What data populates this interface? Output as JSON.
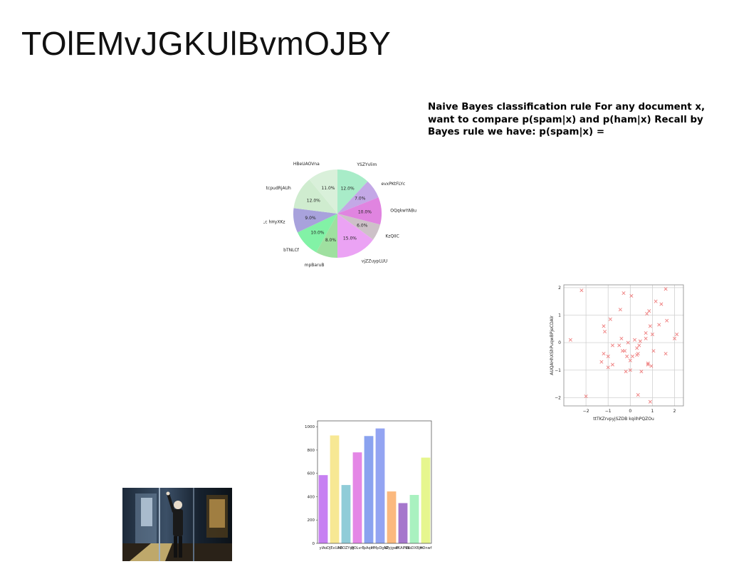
{
  "slide": {
    "title": "TOlEMvJGKUlBvmOJBY",
    "text": "Naive Bayes classification rule For any document x, want to compare p(spam|x) and p(ham|x) Recall by Bayes rule we have: p(spam|x) ="
  },
  "chart_data": [
    {
      "type": "pie",
      "labels": [
        "YSZYvlim",
        "evxPKtFLYc",
        "OQqkwYABu",
        "KzQIIC",
        "vjZZuypLUU",
        "mpBaruB",
        "bTNLCf",
        "dLc hHyXKz",
        "tcpudRjAUh",
        "HBeUAOVna"
      ],
      "values": [
        12.0,
        7.0,
        10.0,
        6.0,
        15.0,
        8.0,
        10.0,
        9.0,
        12.0,
        11.0
      ],
      "value_labels": [
        "12.0%",
        "7.0%",
        "10.0%",
        "6.0%",
        "15.0%",
        "8.0%",
        "10.0%",
        "9.0%",
        "12.0%",
        "11.0%"
      ],
      "colors": [
        "#a8ecc8",
        "#c3a8e6",
        "#e084e0",
        "#cdc1c8",
        "#eba3f4",
        "#9fe0a0",
        "#82f2a6",
        "#a8a2dc",
        "#cfeccf",
        "#d9f0da"
      ]
    },
    {
      "type": "scatter",
      "xlabel": "ttTKZrvpyjSZDB kqiIhPQZOu",
      "ylabel": "AUQAHhXShPuqwBPjeCDAlr",
      "xlim": [
        -3,
        2.4
      ],
      "ylim": [
        -2.3,
        2.1
      ],
      "xticks": [
        -2,
        -1,
        0,
        1,
        2
      ],
      "yticks": [
        -2,
        -1,
        0,
        1,
        2
      ],
      "xtick_labels": [
        "−2",
        "−1",
        "0",
        "1",
        "2"
      ],
      "ytick_labels": [
        "−2",
        "−1",
        "0",
        "1",
        "2"
      ],
      "grid": true,
      "marker": "x",
      "color": "#ef7f7f",
      "points": [
        [
          -2.7,
          0.1
        ],
        [
          -2.2,
          1.9
        ],
        [
          -2.0,
          -1.95
        ],
        [
          -1.3,
          -0.7
        ],
        [
          -1.2,
          -0.4
        ],
        [
          -1.2,
          0.6
        ],
        [
          -1.15,
          0.4
        ],
        [
          -1.0,
          -0.9
        ],
        [
          -1.0,
          -0.5
        ],
        [
          -0.9,
          0.85
        ],
        [
          -0.8,
          -0.1
        ],
        [
          -0.8,
          -0.8
        ],
        [
          -0.5,
          -0.1
        ],
        [
          -0.45,
          1.2
        ],
        [
          -0.4,
          0.15
        ],
        [
          -0.35,
          -0.3
        ],
        [
          -0.3,
          1.8
        ],
        [
          -0.25,
          -0.3
        ],
        [
          -0.2,
          -1.05
        ],
        [
          -0.15,
          -0.5
        ],
        [
          -0.1,
          0.0
        ],
        [
          0.0,
          -0.65
        ],
        [
          0.0,
          -1.0
        ],
        [
          0.05,
          1.7
        ],
        [
          0.1,
          -0.5
        ],
        [
          0.2,
          0.1
        ],
        [
          0.3,
          -0.2
        ],
        [
          0.3,
          -0.45
        ],
        [
          0.35,
          -0.4
        ],
        [
          0.35,
          -1.9
        ],
        [
          0.4,
          -0.1
        ],
        [
          0.45,
          0.05
        ],
        [
          0.5,
          -1.05
        ],
        [
          0.7,
          0.15
        ],
        [
          0.7,
          0.35
        ],
        [
          0.75,
          1.05
        ],
        [
          0.8,
          -0.8
        ],
        [
          0.8,
          -0.75
        ],
        [
          0.85,
          1.15
        ],
        [
          0.9,
          0.6
        ],
        [
          0.9,
          -2.15
        ],
        [
          0.95,
          -0.85
        ],
        [
          1.0,
          0.3
        ],
        [
          1.05,
          -0.3
        ],
        [
          1.15,
          1.5
        ],
        [
          1.3,
          0.65
        ],
        [
          1.4,
          1.4
        ],
        [
          1.6,
          -0.4
        ],
        [
          1.6,
          1.95
        ],
        [
          1.65,
          0.8
        ],
        [
          2.0,
          0.15
        ],
        [
          2.1,
          0.3
        ]
      ]
    },
    {
      "type": "bar",
      "categories": [
        "ylAo",
        "DJExUAB",
        "hBOZYcg",
        "jPOLvrE",
        "pAqkf",
        "hMpDgNP",
        "tZyjgwF",
        "bKAIFEK",
        "uLsDXBjm",
        "HOnwf"
      ],
      "tick_labels": [
        "ylAo",
        "DJExUAB",
        "hBOZYcg",
        "jPOLvrE",
        "pAqkf",
        "hMpDgNP",
        "tZyjgwF",
        "bKAIFEK",
        "uLsDXBjm",
        "HOnwf"
      ],
      "values": [
        585,
        925,
        500,
        780,
        920,
        985,
        445,
        345,
        415,
        735
      ],
      "ylim": [
        0,
        1050
      ],
      "yticks": [
        0,
        200,
        400,
        600,
        800,
        1000
      ],
      "ytick_labels": [
        "0",
        "200",
        "400",
        "600",
        "800",
        "1000"
      ],
      "colors": [
        "#c780f2",
        "#f7e894",
        "#90ccd8",
        "#e487e6",
        "#8aa2ef",
        "#93a4f2",
        "#fbb97e",
        "#a577cc",
        "#a9f1c0",
        "#e6f68e"
      ]
    }
  ],
  "photo": {
    "label": "photo"
  }
}
